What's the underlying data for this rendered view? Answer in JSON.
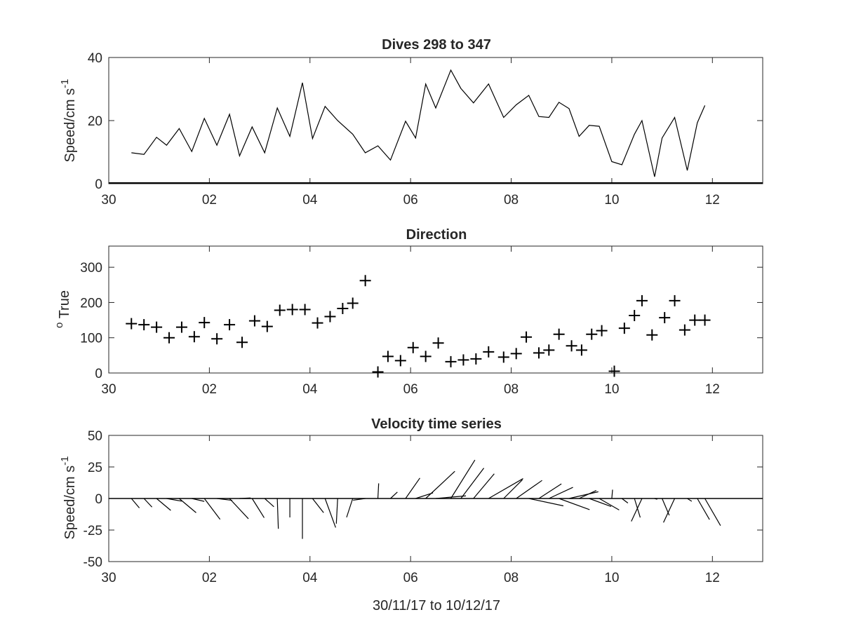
{
  "chart_data": [
    {
      "type": "line",
      "title": "Dives 298 to 347",
      "ylabel": "Speed/cm s",
      "ylabel_superscript": "-1",
      "xlim": [
        -1,
        12
      ],
      "ylim": [
        0,
        40
      ],
      "xticks": [
        -1,
        1,
        3,
        5,
        7,
        9,
        11
      ],
      "xtick_labels": [
        "30",
        "02",
        "04",
        "06",
        "08",
        "10",
        "12"
      ],
      "yticks": [
        0,
        20,
        40
      ],
      "ytick_labels": [
        "0",
        "20",
        "40"
      ],
      "series": [
        {
          "x": [
            -0.55,
            -0.3,
            -0.05,
            0.15,
            0.4,
            0.65,
            0.9,
            1.15,
            1.4,
            1.6,
            1.85,
            2.1,
            2.35,
            2.6,
            2.85,
            3.05,
            3.3,
            3.55,
            3.85,
            4.1,
            4.35,
            4.6,
            4.9,
            5.1,
            5.3,
            5.5,
            5.8,
            6.0,
            6.25,
            6.55,
            6.85,
            7.1,
            7.35,
            7.55,
            7.75,
            7.95,
            8.15,
            8.35,
            8.55,
            8.75,
            9.0,
            9.2,
            9.45,
            9.6,
            9.85,
            10.0,
            10.25,
            10.5,
            10.7,
            10.85
          ],
          "values": [
            9.8,
            9.3,
            14.7,
            12.2,
            17.5,
            10.2,
            20.7,
            12.2,
            22,
            8.8,
            18,
            9.8,
            24,
            15,
            32,
            14.3,
            24.5,
            20,
            15.7,
            9.8,
            12,
            7.5,
            19.8,
            14.5,
            31.6,
            24,
            36,
            30.2,
            25.6,
            31.6,
            21,
            25,
            28,
            21.3,
            21,
            25.8,
            23.8,
            15,
            18.5,
            18.2,
            7,
            6,
            15.7,
            20,
            2.2,
            14.5,
            21,
            4.2,
            19.3,
            24.8
          ]
        }
      ]
    },
    {
      "type": "scatter",
      "title": "Direction",
      "ylabel": "True",
      "ylabel_prefix_superscript": "o",
      "xlim": [
        -1,
        12
      ],
      "ylim": [
        0,
        360
      ],
      "xticks": [
        -1,
        1,
        3,
        5,
        7,
        9,
        11
      ],
      "xtick_labels": [
        "30",
        "02",
        "04",
        "06",
        "08",
        "10",
        "12"
      ],
      "yticks": [
        0,
        100,
        200,
        300
      ],
      "ytick_labels": [
        "0",
        "100",
        "200",
        "300"
      ],
      "series": [
        {
          "marker": "+",
          "x": [
            -0.55,
            -0.3,
            -0.05,
            0.2,
            0.45,
            0.7,
            0.9,
            1.15,
            1.4,
            1.65,
            1.9,
            2.15,
            2.4,
            2.65,
            2.9,
            3.15,
            3.4,
            3.65,
            3.85,
            4.1,
            4.35,
            4.55,
            4.8,
            5.05,
            5.3,
            5.55,
            5.8,
            6.05,
            6.3,
            6.55,
            6.85,
            7.1,
            7.3,
            7.55,
            7.75,
            7.95,
            8.2,
            8.4,
            8.6,
            8.8,
            9.05,
            9.25,
            9.45,
            9.6,
            9.8,
            10.05,
            10.25,
            10.45,
            10.65,
            10.85
          ],
          "values": [
            140,
            137,
            130,
            100,
            130,
            103,
            143,
            97,
            137,
            87,
            148,
            132,
            178,
            180,
            180,
            142,
            160,
            183,
            198,
            262,
            3,
            47,
            35,
            72,
            47,
            85,
            32,
            37,
            40,
            60,
            45,
            55,
            102,
            57,
            65,
            110,
            77,
            65,
            110,
            120,
            5,
            127,
            163,
            205,
            108,
            157,
            205,
            122,
            150,
            150
          ]
        }
      ]
    },
    {
      "type": "vector",
      "title": "Velocity time series",
      "xlabel": "30/11/17 to 10/12/17",
      "ylabel": "Speed/cm s",
      "ylabel_superscript": "-1",
      "xlim": [
        -1,
        12
      ],
      "ylim": [
        -50,
        50
      ],
      "xticks": [
        -1,
        1,
        3,
        5,
        7,
        9,
        11
      ],
      "xtick_labels": [
        "30",
        "02",
        "04",
        "06",
        "08",
        "10",
        "12"
      ],
      "yticks": [
        -50,
        -25,
        0,
        25,
        50
      ],
      "ytick_labels": [
        "-50",
        "-25",
        "0",
        "25",
        "50"
      ],
      "x": [
        -0.55,
        -0.3,
        -0.05,
        0.15,
        0.4,
        0.65,
        0.9,
        1.15,
        1.4,
        1.6,
        1.85,
        2.1,
        2.35,
        2.6,
        2.85,
        3.05,
        3.3,
        3.55,
        3.85,
        4.1,
        4.35,
        4.6,
        4.9,
        5.1,
        5.3,
        5.5,
        5.8,
        6.0,
        6.25,
        6.55,
        6.85,
        7.1,
        7.35,
        7.55,
        7.75,
        7.95,
        8.15,
        8.35,
        8.55,
        8.75,
        9.0,
        9.2,
        9.45,
        9.6,
        9.85,
        10.0,
        10.25,
        10.5,
        10.7,
        10.85
      ],
      "direction_deg": [
        140,
        137,
        130,
        100,
        130,
        103,
        143,
        97,
        137,
        87,
        148,
        132,
        178,
        180,
        180,
        142,
        160,
        183,
        198,
        262,
        3,
        47,
        35,
        72,
        47,
        85,
        32,
        37,
        40,
        60,
        45,
        55,
        102,
        57,
        65,
        110,
        77,
        65,
        110,
        120,
        5,
        127,
        163,
        205,
        108,
        157,
        205,
        122,
        150,
        150
      ],
      "speed": [
        9.8,
        9.3,
        14.7,
        12.2,
        17.5,
        10.2,
        20.7,
        12.2,
        22,
        8.8,
        18,
        9.8,
        24,
        15,
        32,
        14.3,
        24.5,
        20,
        15.7,
        9.8,
        12,
        7.5,
        19.8,
        14.5,
        31.6,
        24,
        36,
        30.2,
        25.6,
        31.6,
        21,
        25,
        28,
        21.3,
        21,
        25.8,
        23.8,
        15,
        18.5,
        18.2,
        7,
        6,
        15.7,
        20,
        2.2,
        14.5,
        21,
        4.2,
        19.3,
        24.8
      ]
    }
  ]
}
